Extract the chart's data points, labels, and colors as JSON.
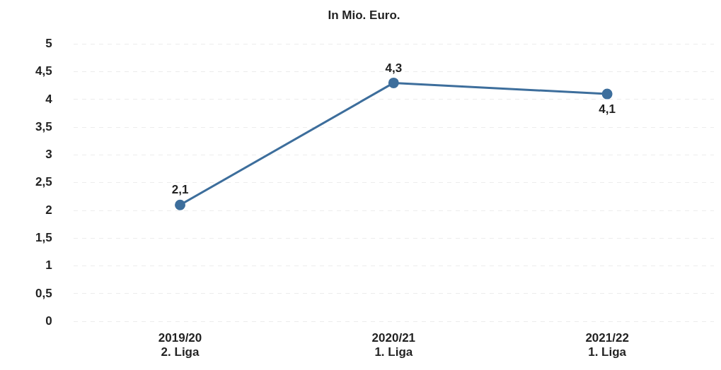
{
  "chart_data": {
    "type": "line",
    "title": "In Mio. Euro.",
    "categories": [
      "2019/20\n2. Liga",
      "2020/21\n1. Liga",
      "2021/22\n1. Liga"
    ],
    "series": [
      {
        "color": "#3d6e9c",
        "values": [
          2.1,
          4.3,
          4.1
        ]
      }
    ],
    "value_labels": [
      "2,1",
      "4,3",
      "4,1"
    ],
    "ylim": [
      0,
      5
    ],
    "yticks": [
      0,
      {
        "value": 0.5,
        "label": "0,5"
      },
      1,
      {
        "value": 1.5,
        "label": "1,5"
      },
      2,
      {
        "value": 2.5,
        "label": "2,5"
      },
      3,
      {
        "value": 3.5,
        "label": "3,5"
      },
      4,
      {
        "value": 4.5,
        "label": "4,5"
      },
      5
    ],
    "grid": "y",
    "legend": false,
    "marker": "circle",
    "line_style": "solid"
  }
}
